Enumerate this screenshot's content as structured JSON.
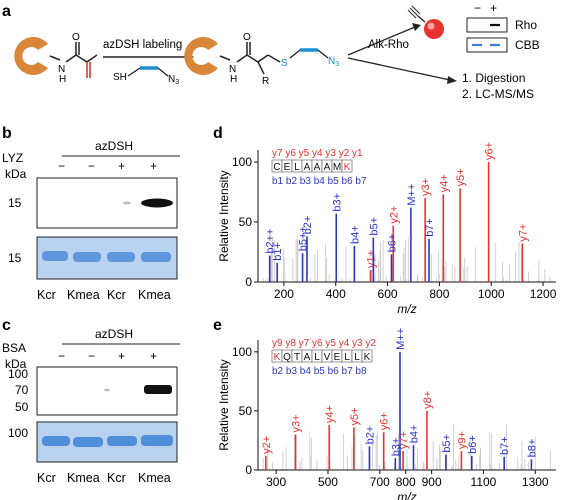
{
  "panels": {
    "a": {
      "letter": "a",
      "step1": "azDSH labeling",
      "step2": "Alk-Rho",
      "thiol_prefix": "SH",
      "azide_suffix": "N",
      "azide_sub": "3",
      "r_group": "R",
      "s_label": "S",
      "n_label": "N",
      "n_sub": "3",
      "nh_left": "N",
      "h_left": "H",
      "o_left": "O",
      "nh_right": "N",
      "h_right": "H",
      "o_right": "O",
      "legend_minus": "−",
      "legend_plus": "+",
      "legend_rho": "Rho",
      "legend_cbb": "CBB",
      "steps": [
        "1. Digestion",
        "2. LC-MS/MS"
      ],
      "colors": {
        "protein": "#d9863a",
        "alkene": "#e8322e",
        "linker": "#1a8fd1",
        "probe": "#e8322e"
      }
    },
    "b": {
      "letter": "b",
      "group_label": "azDSH",
      "protein": "LYZ",
      "kda": "kDa",
      "signs": [
        "−",
        "−",
        "+",
        "+"
      ],
      "marker_top": "15",
      "marker_bottom": "15",
      "lanes": [
        "Kcr",
        "Kmea",
        "Kcr",
        "Kmea"
      ]
    },
    "c": {
      "letter": "c",
      "group_label": "azDSH",
      "protein": "BSA",
      "kda": "kDa",
      "signs": [
        "−",
        "−",
        "+",
        "+"
      ],
      "markers_top": [
        "100",
        "70",
        "50"
      ],
      "marker_bottom": "100",
      "lanes": [
        "Kcr",
        "Kmea",
        "Kcr",
        "Kmea"
      ]
    }
  },
  "chart_data": [
    {
      "panel": "d",
      "type": "bar",
      "ylabel": "Relative Intensity",
      "xlabel": "m/z",
      "xlim": [
        100,
        1250
      ],
      "ylim": [
        0,
        110
      ],
      "xticks": [
        200,
        400,
        600,
        800,
        1000,
        1200
      ],
      "yticks": [
        0,
        50,
        100
      ],
      "peptide": [
        "C",
        "E",
        "L",
        "A",
        "A",
        "A",
        "M",
        "K"
      ],
      "modified_index": 7,
      "y_ions_label": "y7 y6 y5 y4 y3 y2 y1",
      "b_ions_label": "b1 b2 b3 b4 b5 b6 b7",
      "peaks": [
        {
          "label": "b2++",
          "mz": 145,
          "intensity": 22,
          "ion": "b"
        },
        {
          "label": "b1+",
          "mz": 174,
          "intensity": 16,
          "ion": "b"
        },
        {
          "label": "b5++",
          "mz": 272,
          "intensity": 24,
          "ion": "b"
        },
        {
          "label": "b2+",
          "mz": 289,
          "intensity": 38,
          "ion": "b"
        },
        {
          "label": "b3+",
          "mz": 402,
          "intensity": 57,
          "ion": "b"
        },
        {
          "label": "b4+",
          "mz": 472,
          "intensity": 30,
          "ion": "b"
        },
        {
          "label": "y1+",
          "mz": 535,
          "intensity": 10,
          "ion": "y"
        },
        {
          "label": "b5+",
          "mz": 545,
          "intensity": 37,
          "ion": "b"
        },
        {
          "label": "y2+",
          "mz": 622,
          "intensity": 47,
          "ion": "y"
        },
        {
          "label": "b6+",
          "mz": 615,
          "intensity": 23,
          "ion": "b"
        },
        {
          "label": "M++",
          "mz": 690,
          "intensity": 62,
          "ion": "b"
        },
        {
          "label": "y3+",
          "mz": 745,
          "intensity": 70,
          "ion": "y"
        },
        {
          "label": "b7+",
          "mz": 760,
          "intensity": 36,
          "ion": "b"
        },
        {
          "label": "y4+",
          "mz": 815,
          "intensity": 73,
          "ion": "y"
        },
        {
          "label": "y5+",
          "mz": 880,
          "intensity": 78,
          "ion": "y"
        },
        {
          "label": "y6+",
          "mz": 990,
          "intensity": 100,
          "ion": "y"
        },
        {
          "label": "y7+",
          "mz": 1120,
          "intensity": 32,
          "ion": "y"
        }
      ]
    },
    {
      "panel": "e",
      "type": "bar",
      "ylabel": "Relative Intensity",
      "xlabel": "m/z",
      "xlim": [
        230,
        1380
      ],
      "ylim": [
        0,
        110
      ],
      "xticks": [
        300,
        500,
        700,
        900,
        1100,
        1300
      ],
      "extra_xtick": 800,
      "yticks": [
        0,
        50,
        100
      ],
      "peptide": [
        "K",
        "Q",
        "T",
        "A",
        "L",
        "V",
        "E",
        "L",
        "L",
        "K"
      ],
      "modified_index": 0,
      "y_ions_label": "y9 y8 y7 y6 y5 y4 y3 y2",
      "b_ions_label": "b2 b3 b4 b5 b6 b7 b8",
      "peaks": [
        {
          "label": "y2+",
          "mz": 260,
          "intensity": 12,
          "ion": "y"
        },
        {
          "label": "y3+",
          "mz": 375,
          "intensity": 30,
          "ion": "y"
        },
        {
          "label": "y4+",
          "mz": 505,
          "intensity": 38,
          "ion": "y"
        },
        {
          "label": "y5+",
          "mz": 600,
          "intensity": 36,
          "ion": "y"
        },
        {
          "label": "b2+",
          "mz": 660,
          "intensity": 20,
          "ion": "b"
        },
        {
          "label": "y6+",
          "mz": 715,
          "intensity": 32,
          "ion": "y"
        },
        {
          "label": "b3+",
          "mz": 760,
          "intensity": 10,
          "ion": "b"
        },
        {
          "label": "M++",
          "mz": 778,
          "intensity": 100,
          "ion": "b"
        },
        {
          "label": "y7+",
          "mz": 790,
          "intensity": 16,
          "ion": "y"
        },
        {
          "label": "b4+",
          "mz": 830,
          "intensity": 21,
          "ion": "b"
        },
        {
          "label": "y8+",
          "mz": 882,
          "intensity": 50,
          "ion": "y"
        },
        {
          "label": "b5+",
          "mz": 955,
          "intensity": 13,
          "ion": "b"
        },
        {
          "label": "y9+",
          "mz": 1015,
          "intensity": 16,
          "ion": "y"
        },
        {
          "label": "b6+",
          "mz": 1055,
          "intensity": 12,
          "ion": "b"
        },
        {
          "label": "b7+",
          "mz": 1180,
          "intensity": 11,
          "ion": "b"
        },
        {
          "label": "b8+",
          "mz": 1285,
          "intensity": 9,
          "ion": "b"
        }
      ]
    }
  ],
  "colors": {
    "y_ion": "#e8322e",
    "b_ion": "#2b35c8",
    "noise": "#c8c8c8",
    "cbb_band": "#3d7fd6",
    "gel_bg": "#b9d2ef"
  }
}
